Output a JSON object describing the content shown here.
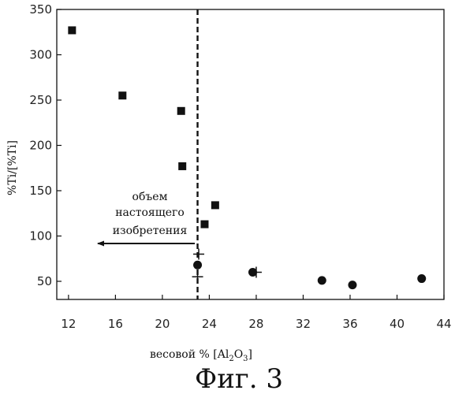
{
  "chart_data": {
    "type": "scatter",
    "xlabel_main": "весовой % [Al",
    "xlabel_sub1": "2",
    "xlabel_mid": "O",
    "xlabel_sub2": "3",
    "xlabel_end": "]",
    "ylabel": "%Ti/[%Ti]",
    "xlim": [
      11,
      44
    ],
    "ylim": [
      30,
      350
    ],
    "xticks": [
      "12",
      "16",
      "20",
      "24",
      "28",
      "32",
      "36",
      "40",
      "44"
    ],
    "yticks": [
      "50",
      "100",
      "150",
      "200",
      "250",
      "300",
      "350"
    ],
    "threshold_x": 23,
    "annotation": [
      "объем",
      "настоящего",
      "изобретения"
    ],
    "caption": "Фиг. 3",
    "series": [
      {
        "marker": "square",
        "points": [
          {
            "x": 12.3,
            "y": 327
          },
          {
            "x": 16.6,
            "y": 255
          },
          {
            "x": 21.6,
            "y": 238
          },
          {
            "x": 21.7,
            "y": 177
          },
          {
            "x": 24.5,
            "y": 134
          },
          {
            "x": 23.6,
            "y": 113
          }
        ]
      },
      {
        "marker": "circle",
        "points": [
          {
            "x": 23.0,
            "y": 68
          },
          {
            "x": 27.7,
            "y": 60
          },
          {
            "x": 33.6,
            "y": 51
          },
          {
            "x": 36.2,
            "y": 46
          },
          {
            "x": 42.1,
            "y": 53
          }
        ]
      },
      {
        "marker": "plus",
        "points": [
          {
            "x": 23.1,
            "y": 80
          },
          {
            "x": 23.0,
            "y": 55
          },
          {
            "x": 28.0,
            "y": 60
          }
        ]
      }
    ]
  }
}
